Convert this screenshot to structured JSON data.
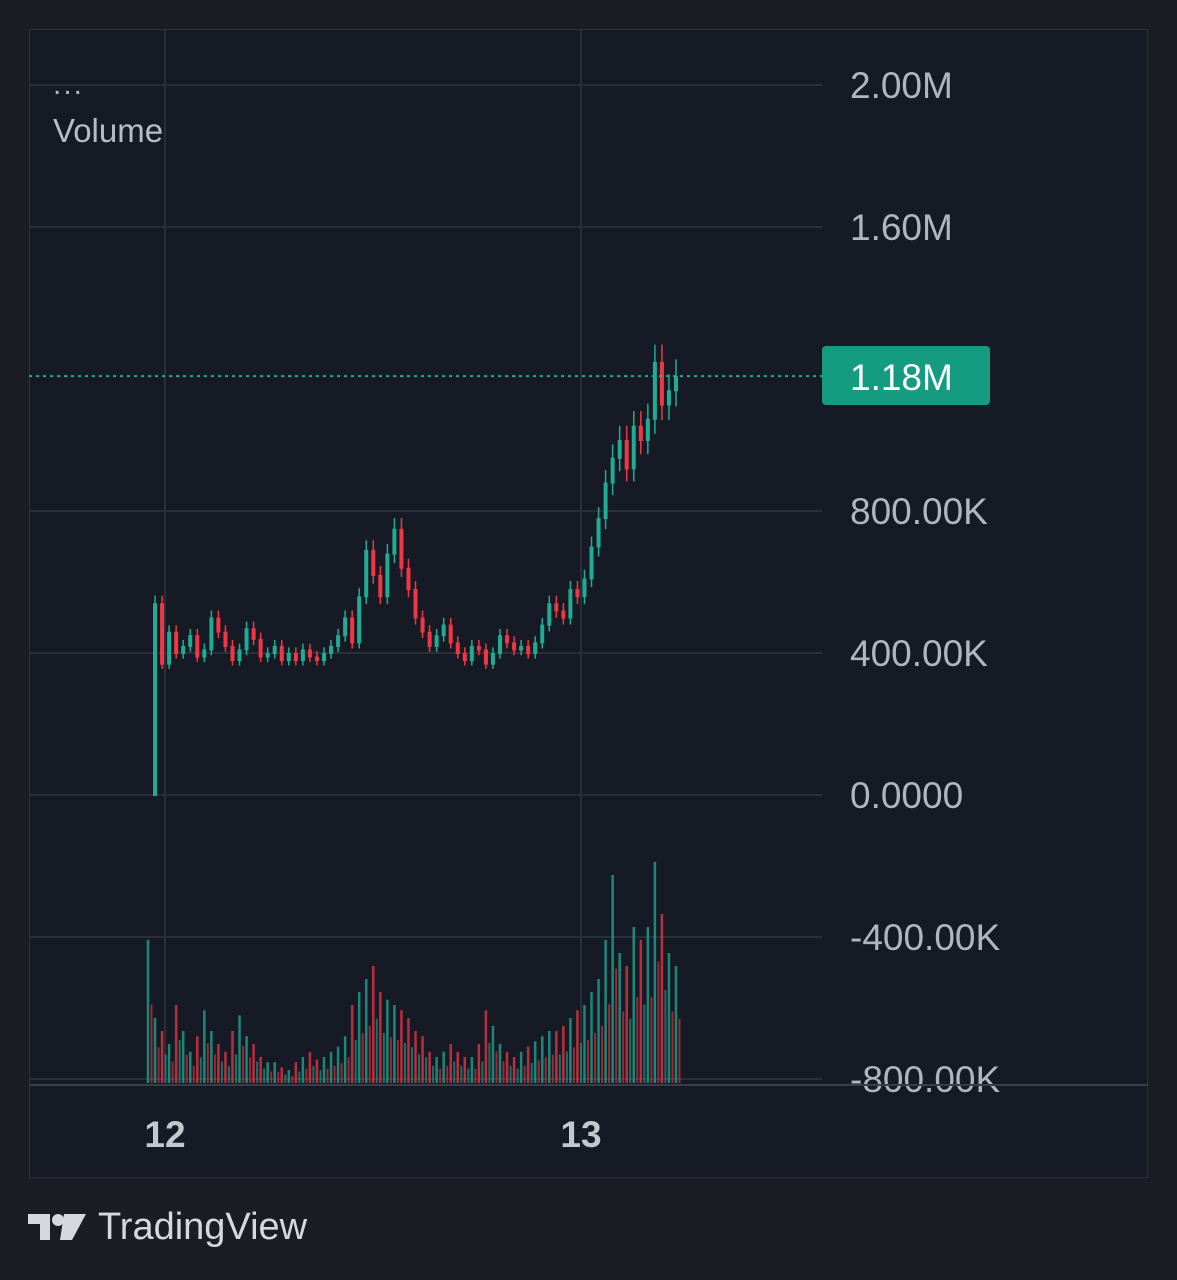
{
  "legend": {
    "menu": "...",
    "indicator": "Volume"
  },
  "brand": {
    "name": "TradingView",
    "icon": "tradingview-logo-icon"
  },
  "colors": {
    "background": "#1b1d25",
    "pane": "#161a24",
    "grid": "#2a2e39",
    "up": "#22ab94",
    "down": "#f23645",
    "price_tag": "#149b80",
    "axis_text": "#b2b5be",
    "date_text": "#c4c7ce"
  },
  "chart_data": {
    "type": "line",
    "title": "",
    "y_ticks": [
      "2.00M",
      "1.60M",
      "1.18M",
      "800.00K",
      "400.00K",
      "0.0000",
      "-400.00K",
      "-800.00K"
    ],
    "y_tick_values": [
      2000000,
      1600000,
      800000,
      400000,
      0,
      -400000,
      -800000
    ],
    "x_ticks": [
      "12",
      "13"
    ],
    "ylim": [
      -800000,
      2000000
    ],
    "last_value": 1180000,
    "last_value_label": "1.18M",
    "grid": true,
    "series": [
      {
        "values": [
          0,
          540000,
          370000,
          460000,
          400000,
          420000,
          450000,
          390000,
          410000,
          500000,
          460000,
          420000,
          380000,
          410000,
          470000,
          440000,
          390000,
          400000,
          420000,
          380000,
          400000,
          380000,
          410000,
          390000,
          380000,
          400000,
          420000,
          450000,
          500000,
          430000,
          560000,
          690000,
          620000,
          560000,
          680000,
          750000,
          640000,
          580000,
          500000,
          460000,
          420000,
          450000,
          480000,
          430000,
          400000,
          380000,
          420000,
          410000,
          370000,
          400000,
          450000,
          430000,
          410000,
          420000,
          400000,
          430000,
          480000,
          540000,
          520000,
          500000,
          580000,
          560000,
          610000,
          700000,
          780000,
          880000,
          950000,
          1000000,
          920000,
          1040000,
          1000000,
          1060000,
          1220000,
          1100000,
          1140000,
          1180000
        ],
        "volume": [
          0.55,
          0.25,
          0.2,
          0.15,
          0.3,
          0.2,
          0.12,
          0.18,
          0.28,
          0.2,
          0.15,
          0.12,
          0.2,
          0.26,
          0.18,
          0.15,
          0.1,
          0.08,
          0.08,
          0.06,
          0.05,
          0.08,
          0.1,
          0.12,
          0.09,
          0.1,
          0.12,
          0.14,
          0.18,
          0.3,
          0.35,
          0.4,
          0.45,
          0.35,
          0.32,
          0.3,
          0.28,
          0.25,
          0.2,
          0.18,
          0.12,
          0.1,
          0.12,
          0.15,
          0.12,
          0.1,
          0.1,
          0.15,
          0.28,
          0.22,
          0.15,
          0.12,
          0.1,
          0.12,
          0.14,
          0.16,
          0.18,
          0.2,
          0.2,
          0.22,
          0.25,
          0.28,
          0.3,
          0.35,
          0.4,
          0.55,
          0.8,
          0.5,
          0.45,
          0.6,
          0.55,
          0.6,
          0.85,
          0.65,
          0.5,
          0.45
        ]
      }
    ]
  }
}
